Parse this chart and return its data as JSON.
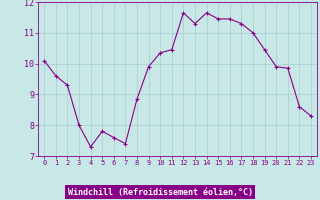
{
  "x": [
    0,
    1,
    2,
    3,
    4,
    5,
    6,
    7,
    8,
    9,
    10,
    11,
    12,
    13,
    14,
    15,
    16,
    17,
    18,
    19,
    20,
    21,
    22,
    23
  ],
  "y": [
    10.1,
    9.6,
    9.3,
    8.0,
    7.3,
    7.8,
    7.6,
    7.4,
    8.85,
    9.9,
    10.35,
    10.45,
    11.65,
    11.3,
    11.65,
    11.45,
    11.45,
    11.3,
    11.0,
    10.45,
    9.9,
    9.85,
    8.6,
    8.3
  ],
  "line_color": "#880088",
  "marker": "+",
  "marker_color": "#880088",
  "bg_color": "#c8e8e8",
  "grid_color": "#a8cccc",
  "xlabel": "Windchill (Refroidissement éolien,°C)",
  "xlabel_bg_color": "#880088",
  "xlabel_text_color": "#ffffff",
  "ylim": [
    7.0,
    12.0
  ],
  "xlim_min": -0.5,
  "xlim_max": 23.5,
  "yticks": [
    7,
    8,
    9,
    10,
    11,
    12
  ],
  "xticks": [
    0,
    1,
    2,
    3,
    4,
    5,
    6,
    7,
    8,
    9,
    10,
    11,
    12,
    13,
    14,
    15,
    16,
    17,
    18,
    19,
    20,
    21,
    22,
    23
  ],
  "tick_color": "#880088",
  "tick_fontsize": 5.0,
  "xlabel_fontsize": 6.0,
  "spine_color": "#880088",
  "linewidth": 0.8,
  "markersize": 2.5
}
